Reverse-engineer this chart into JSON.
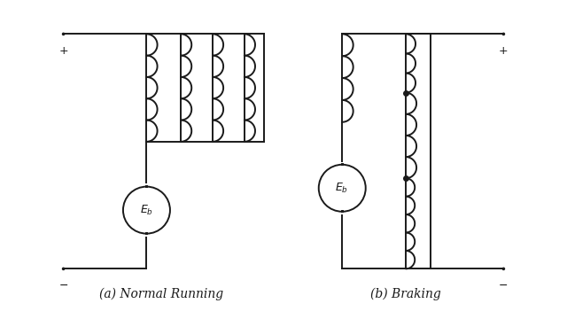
{
  "bg_color": "#ffffff",
  "line_color": "#1a1a1a",
  "label_a": "(a) Normal Running",
  "label_b": "(b) Braking",
  "lw": 1.4
}
